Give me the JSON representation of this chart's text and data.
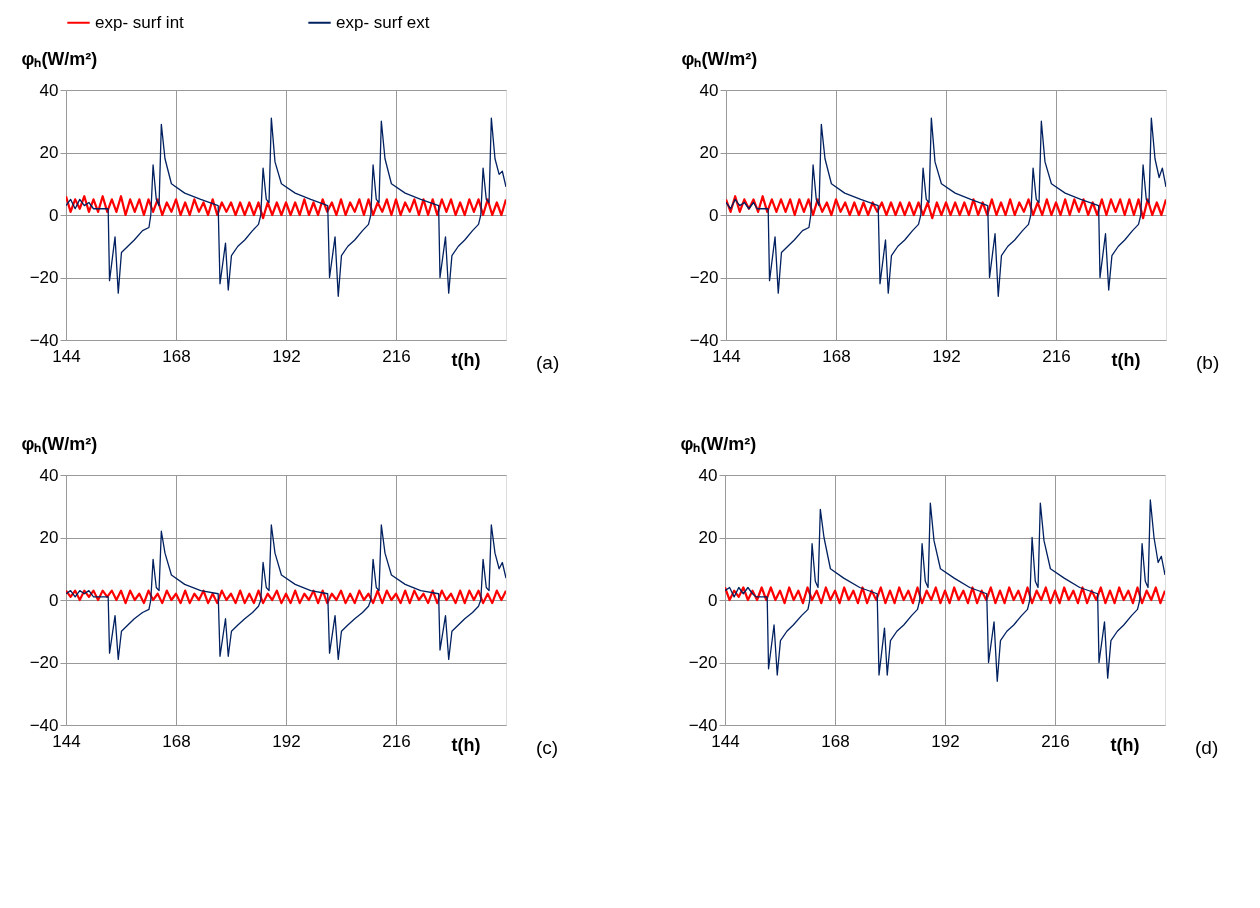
{
  "chart_data": [
    {
      "type": "line",
      "ylabel": "φₕ(W/m²)",
      "xlabel": "t(h)",
      "annotations": [
        "(a)"
      ],
      "xlim": [
        144,
        240
      ],
      "ylim": [
        -40,
        40
      ],
      "xticks": [
        144,
        168,
        192,
        216
      ],
      "yticks": [
        -40,
        -20,
        0,
        20,
        40
      ],
      "grid": true,
      "legend": "top",
      "x": [
        144,
        145,
        146,
        147,
        148,
        149,
        150,
        151,
        152,
        153,
        154,
        155,
        156,
        157,
        158,
        159,
        160,
        161,
        162,
        163,
        164,
        165,
        166,
        167,
        168,
        169,
        170,
        171,
        172,
        173,
        174,
        175,
        176,
        177,
        178,
        179,
        180,
        181,
        182,
        183,
        184,
        185,
        186,
        187,
        188,
        189,
        190,
        191,
        192,
        193,
        194,
        195,
        196,
        197,
        198,
        199,
        200,
        201,
        202,
        203,
        204,
        205,
        206,
        207,
        208,
        209,
        210,
        211,
        212,
        213,
        214,
        215,
        216,
        217,
        218,
        219,
        220,
        221,
        222,
        223,
        224,
        225,
        226,
        227,
        228,
        229,
        230,
        231,
        232,
        233,
        234,
        235,
        236,
        237,
        238,
        239,
        240
      ],
      "series": [
        {
          "name": "exp- surf int",
          "color": "#ff0000",
          "values": [
            6,
            1,
            5,
            2,
            6,
            1,
            5,
            1,
            6,
            1,
            5,
            1,
            6,
            0,
            5,
            1,
            5,
            0,
            5,
            1,
            5,
            0,
            4,
            1,
            5,
            0,
            4,
            0,
            5,
            1,
            4,
            0,
            5,
            0,
            4,
            1,
            4,
            0,
            4,
            0,
            4,
            0,
            4,
            -1,
            4,
            0,
            4,
            0,
            4,
            0,
            4,
            0,
            5,
            0,
            4,
            0,
            5,
            1,
            4,
            0,
            5,
            0,
            4,
            1,
            5,
            0,
            5,
            0,
            4,
            1,
            5,
            0,
            5,
            0,
            4,
            1,
            5,
            0,
            5,
            0,
            5,
            0,
            5,
            1,
            5,
            0,
            4,
            0,
            5,
            1,
            5,
            0,
            5,
            0,
            4,
            0,
            5
          ]
        },
        {
          "name": "exp- surf ext",
          "color": "#002060",
          "x": [
            144,
            145,
            146,
            147,
            148,
            149,
            150,
            150.8,
            153.2,
            153.5,
            154.7,
            155.4,
            156.1,
            157.5,
            158.9,
            160.7,
            162.1,
            162.5,
            163,
            163.7,
            164.3,
            164.8,
            165.6,
            167,
            169.9,
            173.4,
            177.2,
            177.6,
            178.8,
            179.4,
            180.1,
            181.5,
            183,
            184.7,
            186,
            186.5,
            187,
            187.7,
            188.3,
            188.8,
            189.6,
            191,
            194,
            197.4,
            201.1,
            201.5,
            202.7,
            203.4,
            204.1,
            205.5,
            207,
            208.7,
            210,
            210.5,
            211,
            211.7,
            212.3,
            212.8,
            213.6,
            215,
            218,
            221.4,
            225.3,
            225.6,
            226.8,
            227.5,
            228.2,
            229.6,
            231,
            232.7,
            234,
            234.5,
            235,
            235.7,
            236.3,
            236.8,
            237.6,
            238.5,
            239.2,
            240
          ],
          "values": [
            3,
            5,
            2,
            5,
            3,
            4,
            2,
            2,
            2,
            -21,
            -7,
            -25,
            -12,
            -10,
            -8,
            -5,
            -4,
            0,
            16,
            5,
            3,
            29,
            18,
            10,
            7,
            5,
            3,
            -22,
            -9,
            -24,
            -13,
            -10,
            -8,
            -5,
            -3,
            0,
            15,
            5,
            4,
            31,
            17,
            10,
            7,
            5,
            3,
            -20,
            -7,
            -26,
            -13,
            -10,
            -8,
            -5,
            -3,
            0,
            16,
            5,
            4,
            30,
            18,
            10,
            7,
            5,
            3,
            -20,
            -7,
            -25,
            -13,
            -10,
            -8,
            -5,
            -3,
            0,
            15,
            5,
            4,
            31,
            18,
            13,
            14,
            9
          ]
        }
      ]
    },
    {
      "type": "line",
      "ylabel": "φₕ(W/m²)",
      "xlabel": "t(h)",
      "annotations": [
        "(b)"
      ],
      "xlim": [
        144,
        240
      ],
      "ylim": [
        -40,
        40
      ],
      "xticks": [
        144,
        168,
        192,
        216
      ],
      "yticks": [
        -40,
        -20,
        0,
        20,
        40
      ],
      "grid": true,
      "x": [
        144,
        145,
        146,
        147,
        148,
        149,
        150,
        151,
        152,
        153,
        154,
        155,
        156,
        157,
        158,
        159,
        160,
        161,
        162,
        163,
        164,
        165,
        166,
        167,
        168,
        169,
        170,
        171,
        172,
        173,
        174,
        175,
        176,
        177,
        178,
        179,
        180,
        181,
        182,
        183,
        184,
        185,
        186,
        187,
        188,
        189,
        190,
        191,
        192,
        193,
        194,
        195,
        196,
        197,
        198,
        199,
        200,
        201,
        202,
        203,
        204,
        205,
        206,
        207,
        208,
        209,
        210,
        211,
        212,
        213,
        214,
        215,
        216,
        217,
        218,
        219,
        220,
        221,
        222,
        223,
        224,
        225,
        226,
        227,
        228,
        229,
        230,
        231,
        232,
        233,
        234,
        235,
        236,
        237,
        238,
        239,
        240
      ],
      "series": [
        {
          "color": "#ff0000",
          "values": [
            5,
            1,
            6,
            1,
            5,
            2,
            5,
            1,
            6,
            1,
            5,
            1,
            5,
            1,
            5,
            0,
            5,
            1,
            5,
            0,
            5,
            1,
            4,
            0,
            5,
            1,
            4,
            0,
            4,
            0,
            4,
            0,
            4,
            1,
            4,
            0,
            4,
            0,
            4,
            0,
            4,
            0,
            4,
            0,
            4,
            -1,
            4,
            0,
            4,
            0,
            4,
            0,
            4,
            0,
            5,
            0,
            4,
            0,
            5,
            0,
            4,
            0,
            5,
            0,
            4,
            1,
            5,
            0,
            4,
            0,
            5,
            0,
            4,
            0,
            5,
            0,
            5,
            1,
            5,
            0,
            4,
            0,
            5,
            0,
            5,
            1,
            5,
            0,
            5,
            0,
            5,
            -1,
            5,
            0,
            4,
            0,
            5
          ]
        },
        {
          "color": "#002060",
          "x": [
            144,
            145,
            146,
            147,
            148,
            149,
            150,
            150.8,
            153.2,
            153.5,
            154.7,
            155.4,
            156.1,
            157.5,
            158.9,
            160.7,
            162.1,
            162.5,
            163,
            163.7,
            164.3,
            164.8,
            165.6,
            167,
            169.9,
            173.4,
            177.2,
            177.6,
            178.8,
            179.4,
            180.1,
            181.5,
            183,
            184.7,
            186,
            186.5,
            187,
            187.7,
            188.3,
            188.8,
            189.6,
            191,
            194,
            197.4,
            201.1,
            201.5,
            202.7,
            203.4,
            204.1,
            205.5,
            207,
            208.7,
            210,
            210.5,
            211,
            211.7,
            212.3,
            212.8,
            213.6,
            215,
            218,
            221.4,
            225.3,
            225.6,
            226.8,
            227.5,
            228.2,
            229.6,
            231,
            232.7,
            234,
            234.5,
            235,
            235.7,
            236.3,
            236.8,
            237.6,
            238.5,
            239.2,
            240
          ],
          "values": [
            4,
            2,
            5,
            3,
            4,
            2,
            4,
            2,
            2,
            -21,
            -7,
            -25,
            -12,
            -10,
            -8,
            -5,
            -4,
            0,
            16,
            5,
            3,
            29,
            18,
            10,
            7,
            5,
            3,
            -22,
            -8,
            -25,
            -13,
            -10,
            -8,
            -5,
            -3,
            0,
            15,
            5,
            4,
            31,
            17,
            10,
            7,
            5,
            3,
            -20,
            -6,
            -26,
            -13,
            -10,
            -8,
            -5,
            -3,
            0,
            15,
            5,
            4,
            30,
            17,
            10,
            7,
            5,
            3,
            -20,
            -6,
            -24,
            -13,
            -10,
            -8,
            -5,
            -3,
            0,
            16,
            5,
            4,
            31,
            18,
            12,
            15,
            9
          ]
        }
      ]
    },
    {
      "type": "line",
      "ylabel": "φₕ(W/m²)",
      "xlabel": "t(h)",
      "annotations": [
        "(c)"
      ],
      "xlim": [
        144,
        240
      ],
      "ylim": [
        -40,
        40
      ],
      "xticks": [
        144,
        168,
        192,
        216
      ],
      "yticks": [
        -40,
        -20,
        0,
        20,
        40
      ],
      "grid": true,
      "x": [
        144,
        145,
        146,
        147,
        148,
        149,
        150,
        151,
        152,
        153,
        154,
        155,
        156,
        157,
        158,
        159,
        160,
        161,
        162,
        163,
        164,
        165,
        166,
        167,
        168,
        169,
        170,
        171,
        172,
        173,
        174,
        175,
        176,
        177,
        178,
        179,
        180,
        181,
        182,
        183,
        184,
        185,
        186,
        187,
        188,
        189,
        190,
        191,
        192,
        193,
        194,
        195,
        196,
        197,
        198,
        199,
        200,
        201,
        202,
        203,
        204,
        205,
        206,
        207,
        208,
        209,
        210,
        211,
        212,
        213,
        214,
        215,
        216,
        217,
        218,
        219,
        220,
        221,
        222,
        223,
        224,
        225,
        226,
        227,
        228,
        229,
        230,
        231,
        232,
        233,
        234,
        235,
        236,
        237,
        238,
        239,
        240
      ],
      "series": [
        {
          "color": "#ff0000",
          "values": [
            3,
            1,
            3,
            0,
            3,
            1,
            3,
            0,
            3,
            1,
            3,
            0,
            3,
            -1,
            3,
            0,
            2,
            -1,
            3,
            0,
            2,
            -1,
            3,
            0,
            2,
            -1,
            3,
            -1,
            2,
            0,
            3,
            -1,
            2,
            -1,
            3,
            0,
            2,
            -1,
            3,
            -1,
            2,
            -1,
            3,
            -1,
            2,
            0,
            3,
            -1,
            2,
            -1,
            3,
            -1,
            2,
            0,
            3,
            -1,
            3,
            -1,
            2,
            0,
            3,
            -1,
            2,
            -1,
            3,
            0,
            2,
            -1,
            3,
            -1,
            3,
            0,
            2,
            -1,
            3,
            -1,
            3,
            0,
            2,
            -1,
            3,
            -1,
            3,
            0,
            2,
            -1,
            3,
            -1,
            3,
            0,
            3,
            -1,
            2,
            -1,
            3,
            0,
            3
          ]
        },
        {
          "color": "#002060",
          "x": [
            144,
            145,
            146,
            147,
            148,
            149,
            150,
            150.8,
            153.2,
            153.5,
            154.7,
            155.4,
            156.1,
            157.5,
            158.9,
            160.7,
            162.1,
            162.5,
            163,
            163.7,
            164.3,
            164.8,
            165.6,
            167,
            169.9,
            173.4,
            177.2,
            177.6,
            178.8,
            179.4,
            180.1,
            181.5,
            183,
            184.7,
            186,
            186.5,
            187,
            187.7,
            188.3,
            188.8,
            189.6,
            191,
            194,
            197.4,
            201.1,
            201.5,
            202.7,
            203.4,
            204.1,
            205.5,
            207,
            208.7,
            210,
            210.5,
            211,
            211.7,
            212.3,
            212.8,
            213.6,
            215,
            218,
            221.4,
            225.3,
            225.6,
            226.8,
            227.5,
            228.2,
            229.6,
            231,
            232.7,
            234,
            234.5,
            235,
            235.7,
            236.3,
            236.8,
            237.6,
            238.5,
            239.2,
            240
          ],
          "values": [
            2,
            3,
            1,
            3,
            2,
            3,
            1,
            1,
            1,
            -17,
            -5,
            -19,
            -10,
            -8,
            -6,
            -4,
            -3,
            0,
            13,
            4,
            3,
            22,
            15,
            8,
            5,
            3,
            2,
            -18,
            -6,
            -18,
            -10,
            -8,
            -6,
            -4,
            -2,
            0,
            12,
            4,
            3,
            24,
            15,
            8,
            5,
            3,
            2,
            -17,
            -5,
            -19,
            -10,
            -8,
            -6,
            -4,
            -2,
            0,
            13,
            4,
            3,
            24,
            15,
            8,
            5,
            3,
            2,
            -16,
            -5,
            -19,
            -10,
            -8,
            -6,
            -4,
            -2,
            0,
            13,
            4,
            3,
            24,
            15,
            10,
            12,
            7
          ]
        }
      ]
    },
    {
      "type": "line",
      "ylabel": "φₕ(W/m²)",
      "xlabel": "t(h)",
      "annotations": [
        "(d)"
      ],
      "xlim": [
        144,
        240
      ],
      "ylim": [
        -40,
        40
      ],
      "xticks": [
        144,
        168,
        192,
        216
      ],
      "yticks": [
        -40,
        -20,
        0,
        20,
        40
      ],
      "grid": true,
      "x": [
        144,
        145,
        146,
        147,
        148,
        149,
        150,
        151,
        152,
        153,
        154,
        155,
        156,
        157,
        158,
        159,
        160,
        161,
        162,
        163,
        164,
        165,
        166,
        167,
        168,
        169,
        170,
        171,
        172,
        173,
        174,
        175,
        176,
        177,
        178,
        179,
        180,
        181,
        182,
        183,
        184,
        185,
        186,
        187,
        188,
        189,
        190,
        191,
        192,
        193,
        194,
        195,
        196,
        197,
        198,
        199,
        200,
        201,
        202,
        203,
        204,
        205,
        206,
        207,
        208,
        209,
        210,
        211,
        212,
        213,
        214,
        215,
        216,
        217,
        218,
        219,
        220,
        221,
        222,
        223,
        224,
        225,
        226,
        227,
        228,
        229,
        230,
        231,
        232,
        233,
        234,
        235,
        236,
        237,
        238,
        239,
        240
      ],
      "series": [
        {
          "color": "#ff0000",
          "values": [
            4,
            0,
            3,
            1,
            4,
            0,
            3,
            0,
            4,
            0,
            4,
            0,
            3,
            -1,
            4,
            0,
            3,
            -1,
            4,
            0,
            3,
            -1,
            4,
            0,
            3,
            -1,
            4,
            0,
            3,
            -1,
            4,
            -1,
            3,
            0,
            4,
            -1,
            3,
            -1,
            4,
            0,
            3,
            -1,
            4,
            -1,
            3,
            0,
            4,
            -1,
            3,
            -1,
            4,
            0,
            3,
            -1,
            4,
            -1,
            3,
            0,
            4,
            -1,
            3,
            -1,
            4,
            0,
            3,
            -1,
            4,
            -1,
            3,
            0,
            4,
            -1,
            3,
            -1,
            4,
            0,
            3,
            -1,
            4,
            -1,
            3,
            0,
            4,
            -1,
            3,
            -1,
            4,
            0,
            3,
            -1,
            4,
            -1,
            3,
            0,
            4,
            -1,
            3
          ]
        },
        {
          "color": "#002060",
          "x": [
            144,
            145,
            146,
            147,
            148,
            149,
            150,
            150.8,
            153.2,
            153.5,
            154.7,
            155.4,
            156.1,
            157.5,
            158.9,
            160.7,
            162.1,
            162.5,
            163,
            163.7,
            164.3,
            164.8,
            165.6,
            167,
            169.9,
            173.4,
            177.2,
            177.6,
            178.8,
            179.4,
            180.1,
            181.5,
            183,
            184.7,
            186,
            186.5,
            187,
            187.7,
            188.3,
            188.8,
            189.6,
            191,
            194,
            197.4,
            201.1,
            201.5,
            202.7,
            203.4,
            204.1,
            205.5,
            207,
            208.7,
            210,
            210.5,
            211,
            211.7,
            212.3,
            212.8,
            213.6,
            215,
            218,
            221.4,
            225.3,
            225.6,
            226.8,
            227.5,
            228.2,
            229.6,
            231,
            232.7,
            234,
            234.5,
            235,
            235.7,
            236.3,
            236.8,
            237.6,
            238.5,
            239.2,
            240
          ],
          "values": [
            3,
            4,
            1,
            4,
            2,
            4,
            2,
            1,
            1,
            -22,
            -8,
            -24,
            -13,
            -10,
            -8,
            -5,
            -3,
            0,
            18,
            6,
            4,
            29,
            20,
            10,
            7,
            4,
            2,
            -24,
            -9,
            -24,
            -13,
            -10,
            -8,
            -5,
            -3,
            0,
            18,
            6,
            4,
            31,
            19,
            10,
            7,
            4,
            2,
            -20,
            -7,
            -26,
            -13,
            -10,
            -8,
            -5,
            -3,
            0,
            20,
            6,
            4,
            31,
            19,
            10,
            7,
            4,
            2,
            -20,
            -7,
            -25,
            -13,
            -10,
            -8,
            -5,
            -3,
            0,
            18,
            6,
            4,
            32,
            20,
            12,
            14,
            8
          ]
        }
      ]
    }
  ]
}
